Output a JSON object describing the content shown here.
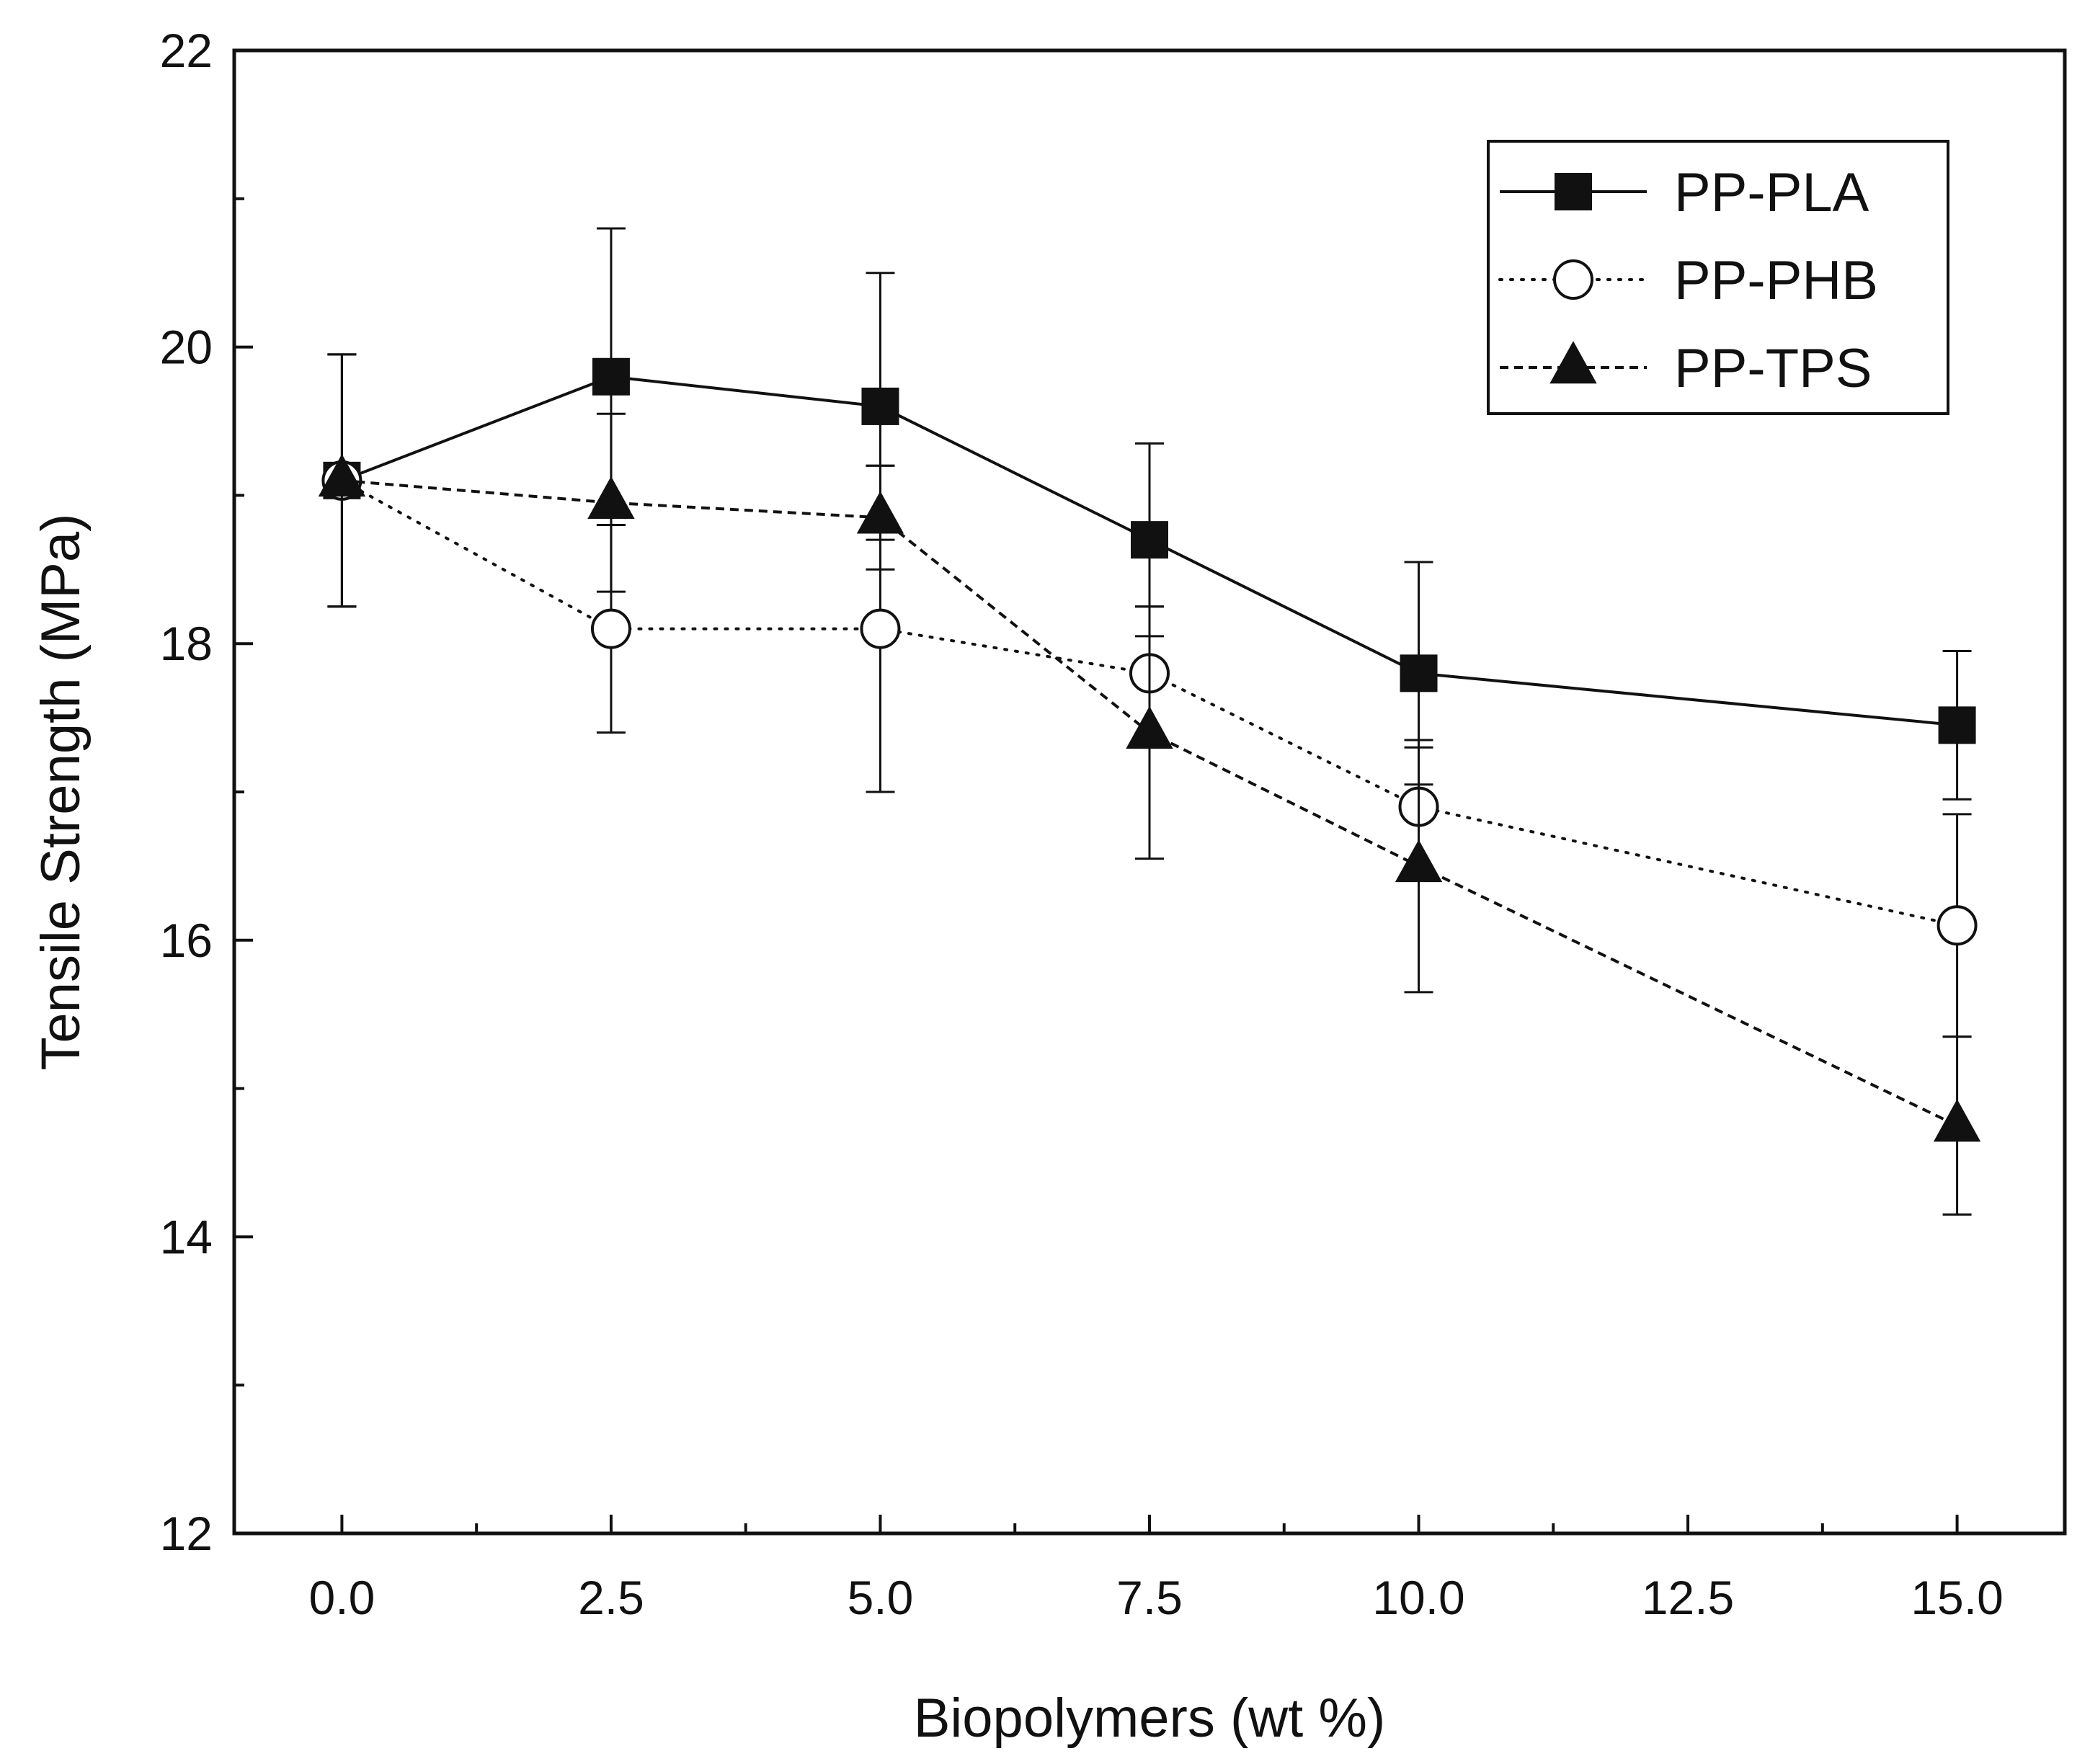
{
  "chart_data": {
    "type": "line",
    "title": "",
    "xlabel": "Biopolymers (wt %)",
    "ylabel": "Tensile Strength (MPa)",
    "xlim": [
      -1.0,
      16.0
    ],
    "ylim": [
      12,
      22
    ],
    "x_ticks": [
      0.0,
      2.5,
      5.0,
      7.5,
      10.0,
      12.5,
      15.0
    ],
    "x_tick_labels": [
      "0.0",
      "2.5",
      "5.0",
      "7.5",
      "10.0",
      "12.5",
      "15.0"
    ],
    "y_ticks": [
      12,
      14,
      16,
      18,
      20,
      22
    ],
    "y_tick_labels": [
      "12",
      "14",
      "16",
      "18",
      "20",
      "22"
    ],
    "legend_position": "top-right",
    "x": [
      0.0,
      2.5,
      5.0,
      7.5,
      10.0,
      15.0
    ],
    "series": [
      {
        "name": "PP-PLA",
        "marker": "filled-square",
        "line_style": "solid",
        "values": [
          19.1,
          19.8,
          19.6,
          18.7,
          17.8,
          17.45
        ],
        "errors": [
          0.85,
          1.0,
          0.9,
          0.65,
          0.75,
          0.5
        ]
      },
      {
        "name": "PP-PHB",
        "marker": "open-circle",
        "line_style": "dotted",
        "values": [
          19.1,
          18.1,
          18.1,
          17.8,
          16.9,
          16.1
        ],
        "errors": [
          0.85,
          0.7,
          1.1,
          0.45,
          0.4,
          0.75
        ]
      },
      {
        "name": "PP-TPS",
        "marker": "filled-triangle",
        "line_style": "dashed",
        "values": [
          19.1,
          18.95,
          18.85,
          17.4,
          16.5,
          14.75
        ],
        "errors": [
          0.85,
          0.6,
          0.35,
          0.85,
          0.85,
          0.6
        ]
      }
    ]
  }
}
